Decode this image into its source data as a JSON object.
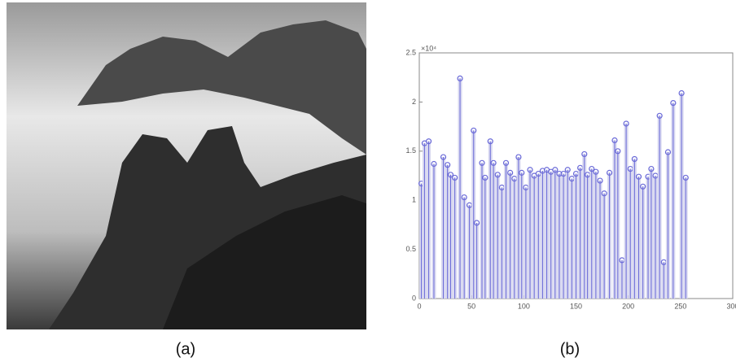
{
  "captions": [
    "(a)",
    "(b)"
  ],
  "chart_data": {
    "type": "stem",
    "y_multiplier": "×10⁴",
    "x": [
      2,
      5,
      9,
      14,
      23,
      27,
      30,
      34,
      39,
      43,
      48,
      52,
      55,
      60,
      63,
      68,
      71,
      75,
      79,
      83,
      87,
      91,
      95,
      98,
      102,
      106,
      110,
      114,
      118,
      122,
      126,
      130,
      134,
      138,
      142,
      146,
      150,
      154,
      158,
      161,
      165,
      169,
      173,
      177,
      182,
      187,
      190,
      194,
      198,
      202,
      206,
      210,
      214,
      219,
      222,
      226,
      230,
      234,
      238,
      243,
      251,
      255
    ],
    "values": [
      1.17,
      1.58,
      1.6,
      1.37,
      1.44,
      1.36,
      1.26,
      1.23,
      2.24,
      1.03,
      0.95,
      1.71,
      0.77,
      1.38,
      1.23,
      1.6,
      1.38,
      1.26,
      1.13,
      1.38,
      1.28,
      1.22,
      1.44,
      1.28,
      1.13,
      1.31,
      1.25,
      1.27,
      1.3,
      1.31,
      1.29,
      1.31,
      1.27,
      1.27,
      1.31,
      1.22,
      1.27,
      1.33,
      1.47,
      1.26,
      1.32,
      1.29,
      1.2,
      1.07,
      1.28,
      1.61,
      1.5,
      0.39,
      1.78,
      1.32,
      1.42,
      1.24,
      1.14,
      1.24,
      1.32,
      1.25,
      1.86,
      0.37,
      1.49,
      1.99,
      2.09,
      1.23
    ],
    "color": "#6a6ad8",
    "fill_color": "#d8d8f0",
    "xlim": [
      0,
      300
    ],
    "xticks": [
      0,
      50,
      100,
      150,
      200,
      250,
      300
    ],
    "ylim": [
      0,
      2.5
    ],
    "yticks": [
      0,
      0.5,
      1,
      1.5,
      2,
      2.5
    ]
  }
}
